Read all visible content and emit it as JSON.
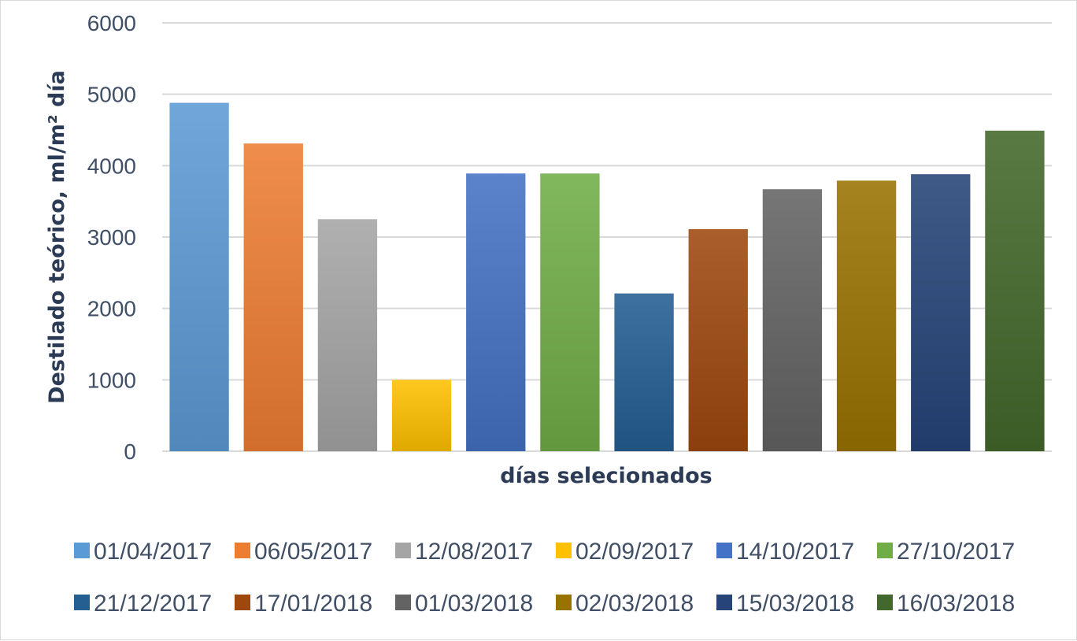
{
  "chart_data": {
    "type": "bar",
    "title": "",
    "xlabel": "días selecionados",
    "ylabel": "Destilado teórico, ml/m² día",
    "ylim": [
      0,
      6000
    ],
    "yticks": [
      "0",
      "1000",
      "2000",
      "3000",
      "4000",
      "5000",
      "6000"
    ],
    "grid": true,
    "legend_position": "bottom",
    "series": [
      {
        "name": "01/04/2017",
        "value": 4880,
        "color": "#5b9bd5"
      },
      {
        "name": "06/05/2017",
        "value": 4310,
        "color": "#ed7d31"
      },
      {
        "name": "12/08/2017",
        "value": 3250,
        "color": "#a5a5a5"
      },
      {
        "name": "02/09/2017",
        "value": 1000,
        "color": "#ffc000"
      },
      {
        "name": "14/10/2017",
        "value": 3890,
        "color": "#4472c4"
      },
      {
        "name": "27/10/2017",
        "value": 3890,
        "color": "#70ad47"
      },
      {
        "name": "21/12/2017",
        "value": 2210,
        "color": "#255e91"
      },
      {
        "name": "17/01/2018",
        "value": 3110,
        "color": "#9e480e"
      },
      {
        "name": "01/03/2018",
        "value": 3670,
        "color": "#636363"
      },
      {
        "name": "02/03/2018",
        "value": 3790,
        "color": "#997300"
      },
      {
        "name": "15/03/2018",
        "value": 3880,
        "color": "#264478"
      },
      {
        "name": "16/03/2018",
        "value": 4490,
        "color": "#43682b"
      }
    ]
  }
}
